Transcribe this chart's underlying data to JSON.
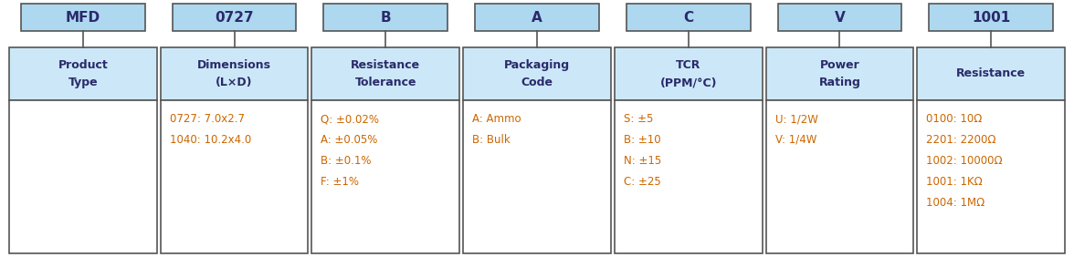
{
  "bg_color": "#ffffff",
  "box_fill_header": "#add8f0",
  "box_fill_label": "#cce8f8",
  "box_fill_detail": "#ffffff",
  "box_edge": "#555555",
  "text_color_label": "#2a2a6a",
  "text_color_code": "#2a2a6a",
  "text_color_detail": "#cc6600",
  "columns": [
    {
      "code": "MFD",
      "label": "Product\nType",
      "details": "",
      "detail_align": "center"
    },
    {
      "code": "0727",
      "label": "Dimensions\n(L×D)",
      "details": "0727: 7.0x2.7\n1040: 10.2x4.0",
      "detail_align": "left"
    },
    {
      "code": "B",
      "label": "Resistance\nTolerance",
      "details": "Q: ±0.02%\nA: ±0.05%\nB: ±0.1%\nF: ±1%",
      "detail_align": "left"
    },
    {
      "code": "A",
      "label": "Packaging\nCode",
      "details": "A: Ammo\nB: Bulk",
      "detail_align": "left"
    },
    {
      "code": "C",
      "label": "TCR\n(PPM/°C)",
      "details": "S: ±5\nB: ±10\nN: ±15\nC: ±25",
      "detail_align": "left"
    },
    {
      "code": "V",
      "label": "Power\nRating",
      "details": "U: 1/2W\nV: 1/4W",
      "detail_align": "left"
    },
    {
      "code": "1001",
      "label": "Resistance",
      "details": "0100: 10Ω\n2201: 2200Ω\n1002: 10000Ω\n1001: 1KΩ\n1004: 1MΩ",
      "detail_align": "left"
    }
  ],
  "fig_width": 11.76,
  "fig_height": 2.82,
  "dpi": 100
}
